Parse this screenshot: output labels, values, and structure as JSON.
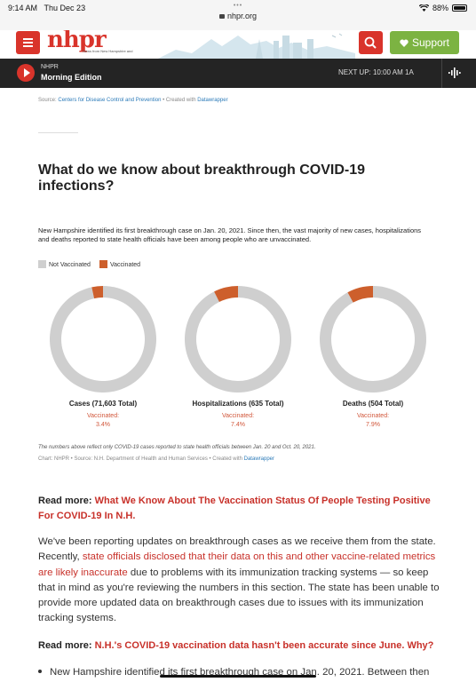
{
  "status_bar": {
    "time": "9:14 AM",
    "date": "Thu Dec 23",
    "url": "nhpr.org",
    "battery": "88%",
    "battery_level": 0.88
  },
  "header": {
    "logo": "nhpr",
    "tagline": "News from New Hampshire and",
    "support_label": "Support",
    "brand_color": "#d9342b",
    "support_color": "#7cb342"
  },
  "player": {
    "station": "NHPR",
    "program": "Morning Edition",
    "next_up": "NEXT UP: 10:00 AM 1A"
  },
  "article": {
    "source_prefix": "Source: ",
    "source_link": "Centers for Disease Control and Prevention",
    "source_suffix": " • Created with ",
    "source_tool": "Datawrapper",
    "headline": "What do we know about breakthrough COVID-19 infections?",
    "chart_description": "New Hampshire identified its first breakthrough case on Jan. 20, 2021. Since then, the vast majority of new cases, hospitalizations and deaths reported to state health officials have been among people who are unvaccinated.",
    "chart_note": "The numbers above reflect only COVID-19 cases reported to state health officials between Jan. 20 and Oct. 20, 2021.",
    "chart_credit_prefix": "Chart: NHPR • Source: N.H. Department of Health and Human Services • Created with ",
    "chart_credit_tool": "Datawrapper",
    "readmore_label": "Read more:",
    "readmore1_link": "What We Know About The Vaccination Status Of People Testing Positive For COVID-19 In N.H.",
    "para_part1": "We've been reporting updates on breakthrough cases as we receive them from the state. Recently, ",
    "para_link": "state officials disclosed that their data on this and other vaccine-related metrics are likely inaccurate",
    "para_part2": " due to problems with its immunization tracking systems — so keep that in mind as you're reviewing the numbers in this section. The state has been unable to provide more updated data on breakthrough cases due to issues with its immunization tracking systems.",
    "readmore2_link": "N.H.'s COVID-19 vaccination data hasn't been accurate since June. Why?",
    "bullet1": "New Hampshire identified its first breakthrough case on Jan. 20, 2021. Between then"
  },
  "chart_data": {
    "type": "pie",
    "legend": [
      "Not Vaccinated",
      "Vaccinated"
    ],
    "legend_placement": "top-left",
    "colors": {
      "not_vaccinated": "#cfcfcf",
      "vaccinated": "#cd5f2c",
      "value_label": "#d1563a"
    },
    "charts": [
      {
        "title": "Cases (71,603 Total)",
        "vaccinated_label": "Vaccinated:",
        "vaccinated_value": "3.4%",
        "vaccinated_pct": 3.4,
        "not_vaccinated_pct": 96.6
      },
      {
        "title": "Hospitalizations (635 Total)",
        "vaccinated_label": "Vaccinated:",
        "vaccinated_value": "7.4%",
        "vaccinated_pct": 7.4,
        "not_vaccinated_pct": 92.6
      },
      {
        "title": "Deaths (504 Total)",
        "vaccinated_label": "Vaccinated:",
        "vaccinated_value": "7.9%",
        "vaccinated_pct": 7.9,
        "not_vaccinated_pct": 92.1
      }
    ]
  }
}
